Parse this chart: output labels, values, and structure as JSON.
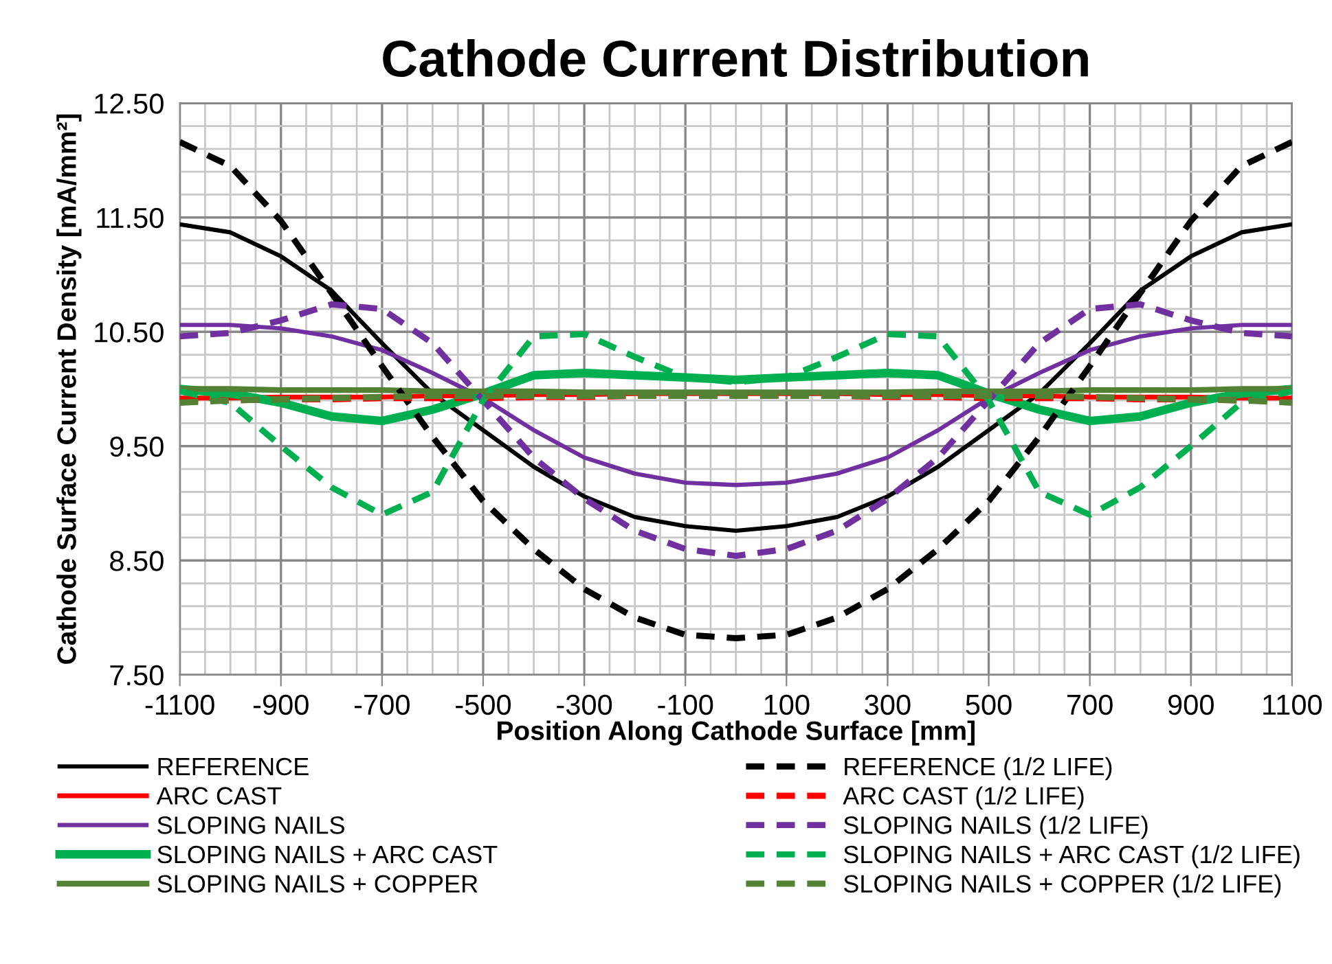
{
  "chart_data": {
    "type": "line",
    "title": "Cathode Current Distribution",
    "xlabel": "Position Along Cathode Surface [mm]",
    "ylabel": "Cathode Surface Current Density [mA/mm²]",
    "x": [
      -1100,
      -1000,
      -900,
      -800,
      -700,
      -600,
      -500,
      -400,
      -300,
      -200,
      -100,
      0,
      100,
      200,
      300,
      400,
      500,
      600,
      700,
      800,
      900,
      1000,
      1100
    ],
    "series": [
      {
        "name": "REFERENCE",
        "color": "#000000",
        "line_style": "solid",
        "values": [
          11.44,
          11.37,
          11.16,
          10.86,
          10.4,
          9.96,
          9.64,
          9.32,
          9.06,
          8.88,
          8.8,
          8.76,
          8.8,
          8.88,
          9.06,
          9.32,
          9.64,
          9.96,
          10.4,
          10.86,
          11.16,
          11.37,
          11.44
        ]
      },
      {
        "name": "ARC CAST",
        "color": "#ff0000",
        "line_style": "solid",
        "values": [
          9.92,
          9.92,
          9.93,
          9.93,
          9.93,
          9.94,
          9.94,
          9.95,
          9.95,
          9.96,
          9.96,
          9.96,
          9.96,
          9.96,
          9.95,
          9.95,
          9.94,
          9.94,
          9.93,
          9.93,
          9.93,
          9.92,
          9.92
        ]
      },
      {
        "name": "SLOPING NAILS",
        "color": "#7030a0",
        "line_style": "solid",
        "values": [
          10.56,
          10.56,
          10.53,
          10.46,
          10.34,
          10.14,
          9.92,
          9.64,
          9.4,
          9.26,
          9.18,
          9.16,
          9.18,
          9.26,
          9.4,
          9.64,
          9.92,
          10.14,
          10.34,
          10.46,
          10.53,
          10.56,
          10.56
        ]
      },
      {
        "name": "SLOPING NAILS + ARC CAST",
        "color": "#00b050",
        "line_style": "solid",
        "values": [
          10.0,
          9.96,
          9.88,
          9.76,
          9.72,
          9.82,
          9.96,
          10.12,
          10.14,
          10.12,
          10.1,
          10.08,
          10.1,
          10.12,
          10.14,
          10.12,
          9.96,
          9.82,
          9.72,
          9.76,
          9.88,
          9.96,
          10.0
        ]
      },
      {
        "name": "SLOPING NAILS + COPPER",
        "color": "#548235",
        "line_style": "solid",
        "values": [
          10.0,
          10.0,
          9.99,
          9.99,
          9.99,
          9.98,
          9.98,
          9.98,
          9.97,
          9.97,
          9.97,
          9.97,
          9.97,
          9.97,
          9.97,
          9.98,
          9.98,
          9.98,
          9.99,
          9.99,
          9.99,
          10.0,
          10.0
        ]
      },
      {
        "name": "REFERENCE (1/2 LIFE)",
        "color": "#000000",
        "line_style": "dashed",
        "values": [
          12.16,
          11.95,
          11.47,
          10.84,
          10.2,
          9.58,
          9.02,
          8.6,
          8.25,
          8.0,
          7.85,
          7.82,
          7.85,
          8.0,
          8.25,
          8.6,
          9.02,
          9.58,
          10.2,
          10.84,
          11.47,
          11.95,
          12.16
        ]
      },
      {
        "name": "ARC CAST (1/2 LIFE)",
        "color": "#ff0000",
        "line_style": "dashed",
        "values": [
          9.9,
          9.9,
          9.91,
          9.91,
          9.92,
          9.92,
          9.92,
          9.93,
          9.93,
          9.94,
          9.94,
          9.94,
          9.94,
          9.94,
          9.93,
          9.93,
          9.92,
          9.92,
          9.92,
          9.91,
          9.91,
          9.9,
          9.9
        ]
      },
      {
        "name": "SLOPING NAILS (1/2 LIFE)",
        "color": "#7030a0",
        "line_style": "dashed",
        "values": [
          10.46,
          10.49,
          10.6,
          10.74,
          10.7,
          10.4,
          9.9,
          9.4,
          9.04,
          8.76,
          8.6,
          8.54,
          8.6,
          8.76,
          9.04,
          9.4,
          9.9,
          10.4,
          10.7,
          10.74,
          10.6,
          10.49,
          10.46
        ]
      },
      {
        "name": "SLOPING NAILS + ARC CAST (1/2 LIFE)",
        "color": "#00b050",
        "line_style": "dashed",
        "values": [
          9.98,
          9.88,
          9.5,
          9.14,
          8.9,
          9.1,
          9.9,
          10.46,
          10.48,
          10.28,
          10.1,
          10.06,
          10.1,
          10.28,
          10.48,
          10.46,
          9.9,
          9.1,
          8.9,
          9.14,
          9.5,
          9.88,
          9.98
        ]
      },
      {
        "name": "SLOPING NAILS + COPPER (1/2 LIFE)",
        "color": "#548235",
        "line_style": "dashed",
        "values": [
          9.88,
          9.9,
          9.91,
          9.92,
          9.93,
          9.94,
          9.94,
          9.94,
          9.94,
          9.94,
          9.94,
          9.94,
          9.94,
          9.94,
          9.94,
          9.94,
          9.94,
          9.94,
          9.93,
          9.92,
          9.91,
          9.9,
          9.88
        ]
      }
    ],
    "xlim": [
      -1100,
      1100
    ],
    "xticks": [
      -1100,
      {
        "value": -1050,
        "label": null
      },
      {
        "value": -1000,
        "label": null
      },
      {
        "value": -950,
        "label": null
      },
      -900,
      {
        "value": -850,
        "label": null
      },
      {
        "value": -800,
        "label": null
      },
      {
        "value": -750,
        "label": null
      },
      -700,
      {
        "value": -650,
        "label": null
      },
      {
        "value": -600,
        "label": null
      },
      {
        "value": -550,
        "label": null
      },
      -500,
      {
        "value": -450,
        "label": null
      },
      {
        "value": -400,
        "label": null
      },
      {
        "value": -350,
        "label": null
      },
      -300,
      {
        "value": -250,
        "label": null
      },
      {
        "value": -200,
        "label": null
      },
      {
        "value": -150,
        "label": null
      },
      -100,
      {
        "value": -50,
        "label": null
      },
      {
        "value": 0,
        "label": null
      },
      {
        "value": 50,
        "label": null
      },
      100,
      {
        "value": 150,
        "label": null
      },
      {
        "value": 200,
        "label": null
      },
      {
        "value": 250,
        "label": null
      },
      300,
      {
        "value": 350,
        "label": null
      },
      {
        "value": 400,
        "label": null
      },
      {
        "value": 450,
        "label": null
      },
      500,
      {
        "value": 550,
        "label": null
      },
      {
        "value": 600,
        "label": null
      },
      {
        "value": 650,
        "label": null
      },
      700,
      {
        "value": 750,
        "label": null
      },
      {
        "value": 800,
        "label": null
      },
      {
        "value": 850,
        "label": null
      },
      900,
      {
        "value": 950,
        "label": null
      },
      {
        "value": 1000,
        "label": null
      },
      {
        "value": 1050,
        "label": null
      },
      1100
    ],
    "ylim": [
      7.5,
      12.5
    ],
    "yticks": [
      {
        "value": 7.5,
        "label": "7.50"
      },
      {
        "value": 7.7,
        "label": null
      },
      {
        "value": 7.9,
        "label": null
      },
      {
        "value": 8.1,
        "label": null
      },
      {
        "value": 8.3,
        "label": null
      },
      {
        "value": 8.5,
        "label": "8.50"
      },
      {
        "value": 8.7,
        "label": null
      },
      {
        "value": 8.9,
        "label": null
      },
      {
        "value": 9.1,
        "label": null
      },
      {
        "value": 9.3,
        "label": null
      },
      {
        "value": 9.5,
        "label": "9.50"
      },
      {
        "value": 9.7,
        "label": null
      },
      {
        "value": 9.9,
        "label": null
      },
      {
        "value": 10.1,
        "label": null
      },
      {
        "value": 10.3,
        "label": null
      },
      {
        "value": 10.5,
        "label": "10.50"
      },
      {
        "value": 10.7,
        "label": null
      },
      {
        "value": 10.9,
        "label": null
      },
      {
        "value": 11.1,
        "label": null
      },
      {
        "value": 11.3,
        "label": null
      },
      {
        "value": 11.5,
        "label": "11.50"
      },
      {
        "value": 11.7,
        "label": null
      },
      {
        "value": 11.9,
        "label": null
      },
      {
        "value": 12.1,
        "label": null
      },
      {
        "value": 12.3,
        "label": null
      },
      {
        "value": 12.5,
        "label": "12.50"
      }
    ],
    "grid": true,
    "legend": "bottom",
    "marker": "none"
  }
}
